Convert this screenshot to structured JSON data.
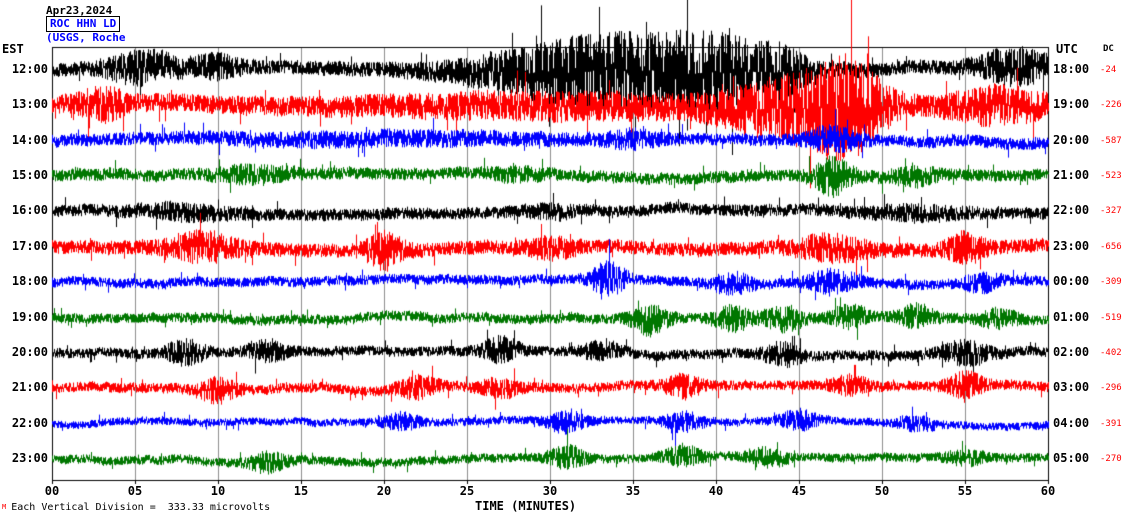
{
  "header": {
    "date": "Apr23,2024",
    "station": "ROC HHN LD",
    "affiliation": "(USGS, Roche"
  },
  "axes": {
    "left_label": "EST",
    "right_label": "UTC",
    "dc_label": "DC",
    "x_label": "TIME (MINUTES)",
    "x_ticks": [
      "00",
      "05",
      "10",
      "15",
      "20",
      "25",
      "30",
      "35",
      "40",
      "45",
      "50",
      "55",
      "60"
    ]
  },
  "footer": {
    "mark": "M",
    "scale_note": "Each Vertical Division =  333.33 microvolts"
  },
  "chart_data": {
    "type": "line",
    "title": "ROC HHN LD helicorder seismogram",
    "date": "Apr23,2024",
    "x_label": "TIME (MINUTES)",
    "x_range_minutes": [
      0,
      60
    ],
    "x_tick_interval_minutes": 5,
    "vertical_division_microvolts": 333.33,
    "trace_color_cycle": [
      "#000000",
      "#ff0000",
      "#0000ff",
      "#007700"
    ],
    "traces": [
      {
        "est": "12:00",
        "utc": "18:00",
        "dc": "-24",
        "color": "#000000",
        "base_amp": 7,
        "events": [
          {
            "c": 5.5,
            "w": 1.5,
            "m": 1.8
          },
          {
            "c": 10,
            "w": 1,
            "m": 1.2
          },
          {
            "c": 33,
            "w": 5,
            "m": 4.5
          },
          {
            "c": 40,
            "w": 2.5,
            "m": 3.5
          },
          {
            "c": 44,
            "w": 1,
            "m": 2
          },
          {
            "c": 58,
            "w": 1.5,
            "m": 2.2
          }
        ]
      },
      {
        "est": "13:00",
        "utc": "19:00",
        "dc": "-226",
        "color": "#ff0000",
        "base_amp": 9,
        "events": [
          {
            "c": 3,
            "w": 1,
            "m": 1.2
          },
          {
            "c": 30,
            "w": 8,
            "m": 0.8
          },
          {
            "c": 45,
            "w": 3,
            "m": 2.8
          },
          {
            "c": 48,
            "w": 1.5,
            "m": 3.2
          },
          {
            "c": 57,
            "w": 2,
            "m": 1.5
          }
        ]
      },
      {
        "est": "14:00",
        "utc": "20:00",
        "dc": "-587",
        "color": "#0000ff",
        "base_amp": 6,
        "events": [
          {
            "c": 20,
            "w": 8,
            "m": 0.6
          },
          {
            "c": 35,
            "w": 1,
            "m": 1
          },
          {
            "c": 47,
            "w": 1,
            "m": 1.6
          }
        ]
      },
      {
        "est": "15:00",
        "utc": "21:00",
        "dc": "-523",
        "color": "#007700",
        "base_amp": 6,
        "events": [
          {
            "c": 12,
            "w": 1.5,
            "m": 1
          },
          {
            "c": 28,
            "w": 1,
            "m": 0.8
          },
          {
            "c": 47,
            "w": 0.8,
            "m": 2.6
          },
          {
            "c": 52,
            "w": 1,
            "m": 1
          }
        ]
      },
      {
        "est": "16:00",
        "utc": "22:00",
        "dc": "-327",
        "color": "#000000",
        "base_amp": 6,
        "events": [
          {
            "c": 8,
            "w": 2,
            "m": 0.8
          },
          {
            "c": 30,
            "w": 1,
            "m": 0.7
          },
          {
            "c": 52,
            "w": 2,
            "m": 0.7
          }
        ]
      },
      {
        "est": "17:00",
        "utc": "23:00",
        "dc": "-656",
        "color": "#ff0000",
        "base_amp": 7,
        "events": [
          {
            "c": 9,
            "w": 1.5,
            "m": 1.6
          },
          {
            "c": 20,
            "w": 0.8,
            "m": 2
          },
          {
            "c": 30,
            "w": 1,
            "m": 1
          },
          {
            "c": 47,
            "w": 1.5,
            "m": 1.4
          },
          {
            "c": 55,
            "w": 0.8,
            "m": 1.6
          }
        ]
      },
      {
        "est": "18:00",
        "utc": "00:00",
        "dc": "-309",
        "color": "#0000ff",
        "base_amp": 5,
        "events": [
          {
            "c": 33.5,
            "w": 0.7,
            "m": 3.2
          },
          {
            "c": 41,
            "w": 0.8,
            "m": 1.6
          },
          {
            "c": 47,
            "w": 1,
            "m": 2
          },
          {
            "c": 56,
            "w": 0.8,
            "m": 1.4
          }
        ]
      },
      {
        "est": "19:00",
        "utc": "01:00",
        "dc": "-519",
        "color": "#007700",
        "base_amp": 5,
        "events": [
          {
            "c": 36,
            "w": 0.8,
            "m": 2.4
          },
          {
            "c": 41,
            "w": 0.8,
            "m": 2
          },
          {
            "c": 44,
            "w": 0.8,
            "m": 2
          },
          {
            "c": 48,
            "w": 0.8,
            "m": 1.8
          },
          {
            "c": 52,
            "w": 0.8,
            "m": 1.8
          },
          {
            "c": 57,
            "w": 0.8,
            "m": 1.4
          }
        ]
      },
      {
        "est": "20:00",
        "utc": "02:00",
        "dc": "-402",
        "color": "#000000",
        "base_amp": 5,
        "events": [
          {
            "c": 8,
            "w": 0.8,
            "m": 2
          },
          {
            "c": 13,
            "w": 0.8,
            "m": 1.6
          },
          {
            "c": 27,
            "w": 0.8,
            "m": 2
          },
          {
            "c": 33,
            "w": 0.8,
            "m": 1.4
          },
          {
            "c": 44,
            "w": 0.8,
            "m": 1.8
          },
          {
            "c": 55,
            "w": 1,
            "m": 2
          }
        ]
      },
      {
        "est": "21:00",
        "utc": "03:00",
        "dc": "-296",
        "color": "#ff0000",
        "base_amp": 5,
        "events": [
          {
            "c": 10,
            "w": 0.8,
            "m": 2
          },
          {
            "c": 22,
            "w": 0.8,
            "m": 1.8
          },
          {
            "c": 27,
            "w": 0.8,
            "m": 1.6
          },
          {
            "c": 38,
            "w": 0.8,
            "m": 1.8
          },
          {
            "c": 48,
            "w": 0.8,
            "m": 1.4
          },
          {
            "c": 55,
            "w": 0.8,
            "m": 2
          }
        ]
      },
      {
        "est": "22:00",
        "utc": "04:00",
        "dc": "-391",
        "color": "#0000ff",
        "base_amp": 4,
        "events": [
          {
            "c": 21,
            "w": 0.8,
            "m": 1.6
          },
          {
            "c": 31,
            "w": 0.8,
            "m": 2.4
          },
          {
            "c": 38,
            "w": 0.8,
            "m": 2
          },
          {
            "c": 45,
            "w": 0.8,
            "m": 2
          },
          {
            "c": 52,
            "w": 0.8,
            "m": 1.4
          }
        ]
      },
      {
        "est": "23:00",
        "utc": "05:00",
        "dc": "-270",
        "color": "#007700",
        "base_amp": 4.5,
        "events": [
          {
            "c": 13,
            "w": 0.8,
            "m": 1.8
          },
          {
            "c": 31,
            "w": 0.8,
            "m": 2
          },
          {
            "c": 38,
            "w": 0.8,
            "m": 1.8
          },
          {
            "c": 43,
            "w": 0.8,
            "m": 1.6
          },
          {
            "c": 55,
            "w": 0.8,
            "m": 1.2
          }
        ]
      }
    ]
  }
}
